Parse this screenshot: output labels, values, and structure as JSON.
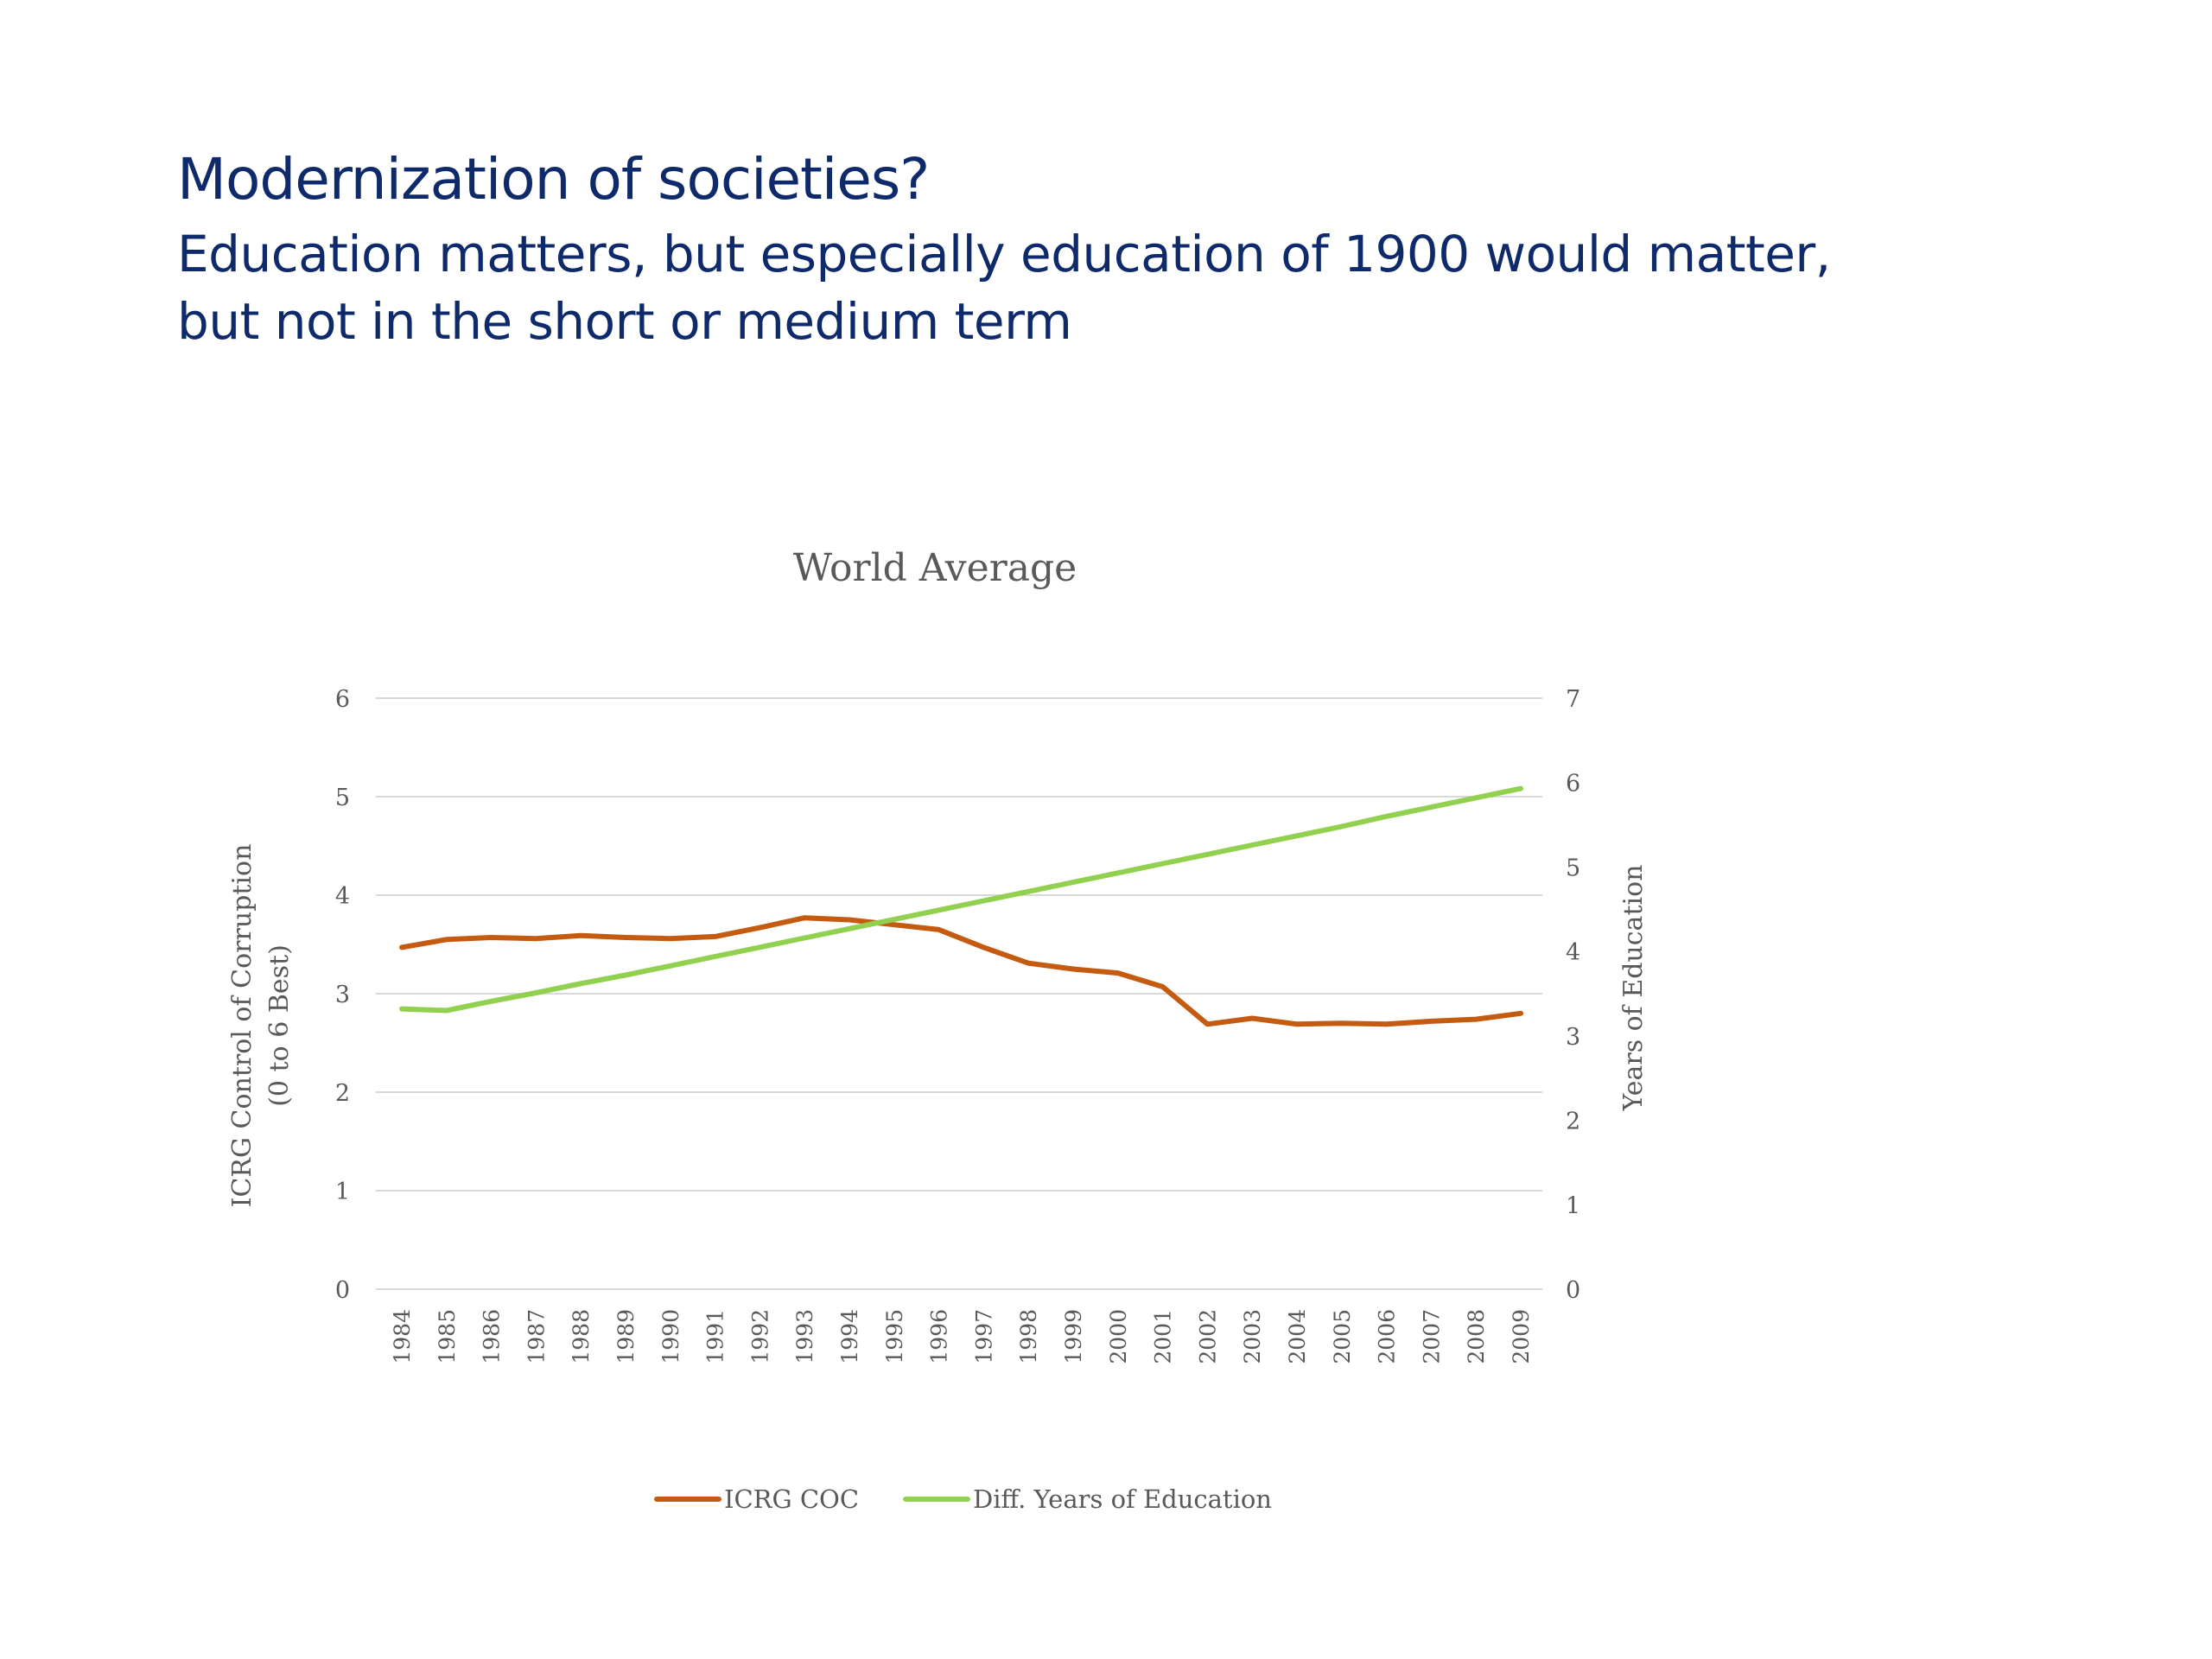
{
  "slide": {
    "title": "Modernization of societies?",
    "subtitle_line1": "Education matters, but especially education of 1900 would matter,",
    "subtitle_line2": "but not in the short or medium term"
  },
  "chart_data": {
    "type": "line",
    "title": "World Average",
    "ylabel_left_line1": "ICRG Control of Corruption",
    "ylabel_left_line2": "(0 to 6 Best)",
    "ylabel_right": "Years of Education",
    "categories": [
      "1984",
      "1985",
      "1986",
      "1987",
      "1988",
      "1989",
      "1990",
      "1991",
      "1992",
      "1993",
      "1994",
      "1995",
      "1996",
      "1997",
      "1998",
      "1999",
      "2000",
      "2001",
      "2002",
      "2003",
      "2004",
      "2005",
      "2006",
      "2007",
      "2008",
      "2009"
    ],
    "y_left_ticks": [
      "0",
      "1",
      "2",
      "3",
      "4",
      "5",
      "6"
    ],
    "y_right_ticks": [
      "0",
      "1",
      "2",
      "3",
      "4",
      "5",
      "6",
      "7"
    ],
    "ylim_left": [
      0,
      6
    ],
    "ylim_right": [
      0,
      7
    ],
    "grid": true,
    "legend_position": "bottom",
    "series": [
      {
        "name": "ICRG COC",
        "axis": "left",
        "color": "#c55a11",
        "values": [
          3.47,
          3.55,
          3.57,
          3.56,
          3.59,
          3.57,
          3.56,
          3.58,
          3.67,
          3.77,
          3.75,
          3.7,
          3.65,
          3.47,
          3.31,
          3.25,
          3.21,
          3.07,
          2.69,
          2.75,
          2.69,
          2.7,
          2.69,
          2.72,
          2.74,
          2.8
        ]
      },
      {
        "name": "Diff. Years of Education",
        "axis": "right",
        "color": "#92d050",
        "values": [
          3.32,
          3.3,
          3.41,
          3.51,
          3.62,
          3.72,
          3.83,
          3.94,
          4.05,
          4.16,
          4.27,
          4.38,
          4.49,
          4.6,
          4.71,
          4.82,
          4.93,
          5.04,
          5.15,
          5.26,
          5.37,
          5.48,
          5.6,
          5.71,
          5.82,
          5.93
        ]
      }
    ]
  }
}
